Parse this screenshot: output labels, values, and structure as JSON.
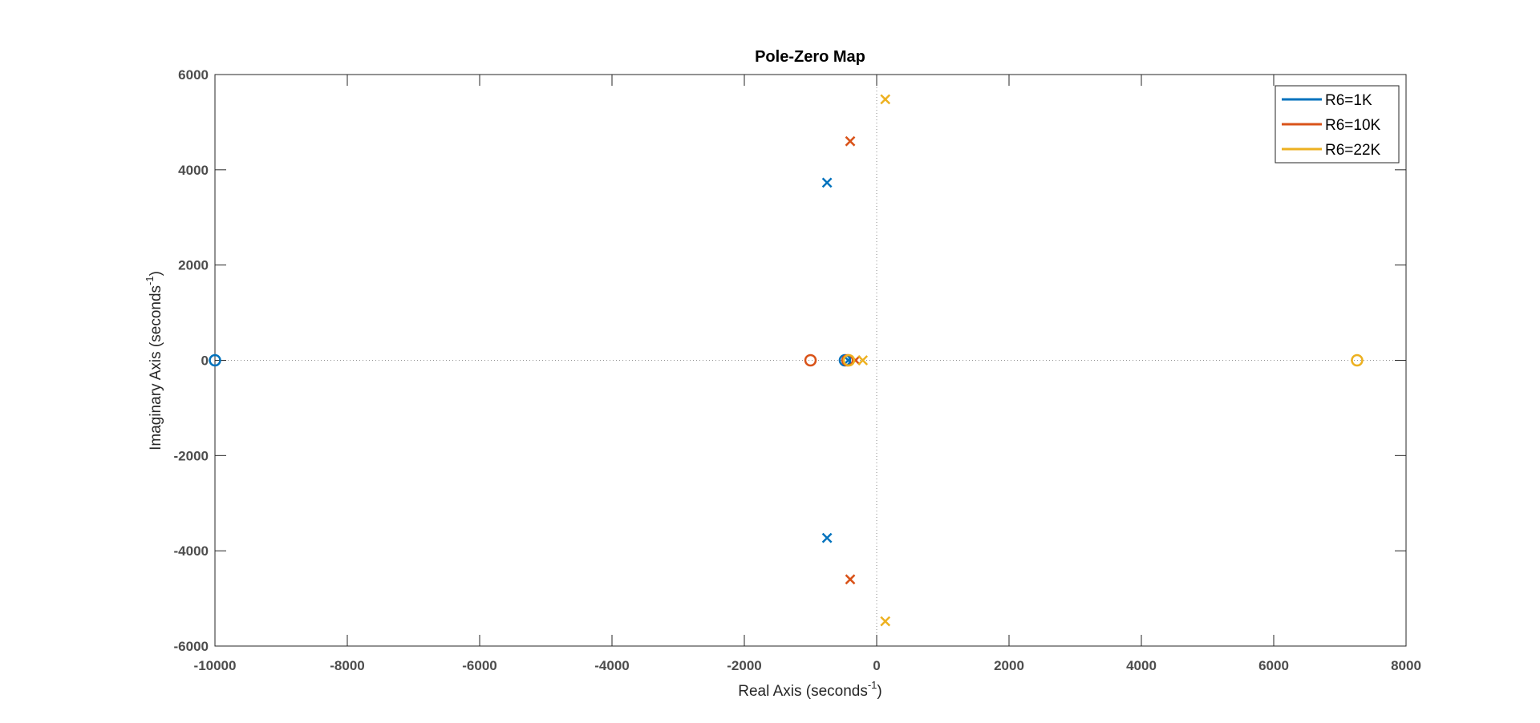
{
  "chart_data": {
    "type": "scatter",
    "title": "Pole-Zero Map",
    "xlabel": "Real Axis (seconds",
    "ylabel": "Imaginary Axis (seconds",
    "axis_label_superscript": "-1",
    "axis_label_close": ")",
    "xlim": [
      -10000,
      8000
    ],
    "ylim": [
      -6000,
      6000
    ],
    "xticks": [
      -10000,
      -8000,
      -6000,
      -4000,
      -2000,
      0,
      2000,
      4000,
      6000,
      8000
    ],
    "yticks": [
      -6000,
      -4000,
      -2000,
      0,
      2000,
      4000,
      6000
    ],
    "xtick_labels": [
      "-10000",
      "-8000",
      "-6000",
      "-4000",
      "-2000",
      "0",
      "2000",
      "4000",
      "6000",
      "8000"
    ],
    "ytick_labels": [
      "-6000",
      "-4000",
      "-2000",
      "0",
      "2000",
      "4000",
      "6000"
    ],
    "grid": false,
    "zero_reference_lines": true,
    "legend_position": "top-right",
    "series": [
      {
        "name": "R6=1K",
        "color": "#0072BD",
        "poles": [
          [
            -750,
            3730
          ],
          [
            -750,
            -3730
          ],
          [
            -430,
            0
          ]
        ],
        "zeros": [
          [
            -10000,
            0
          ],
          [
            -480,
            0
          ]
        ]
      },
      {
        "name": "R6=10K",
        "color": "#D95319",
        "poles": [
          [
            -400,
            4600
          ],
          [
            -400,
            -4600
          ],
          [
            -320,
            0
          ]
        ],
        "zeros": [
          [
            -1000,
            0
          ],
          [
            -440,
            0
          ]
        ]
      },
      {
        "name": "R6=22K",
        "color": "#EDB120",
        "poles": [
          [
            130,
            5480
          ],
          [
            130,
            -5480
          ],
          [
            -210,
            0
          ]
        ],
        "zeros": [
          [
            7260,
            0
          ],
          [
            -420,
            0
          ]
        ]
      }
    ]
  }
}
